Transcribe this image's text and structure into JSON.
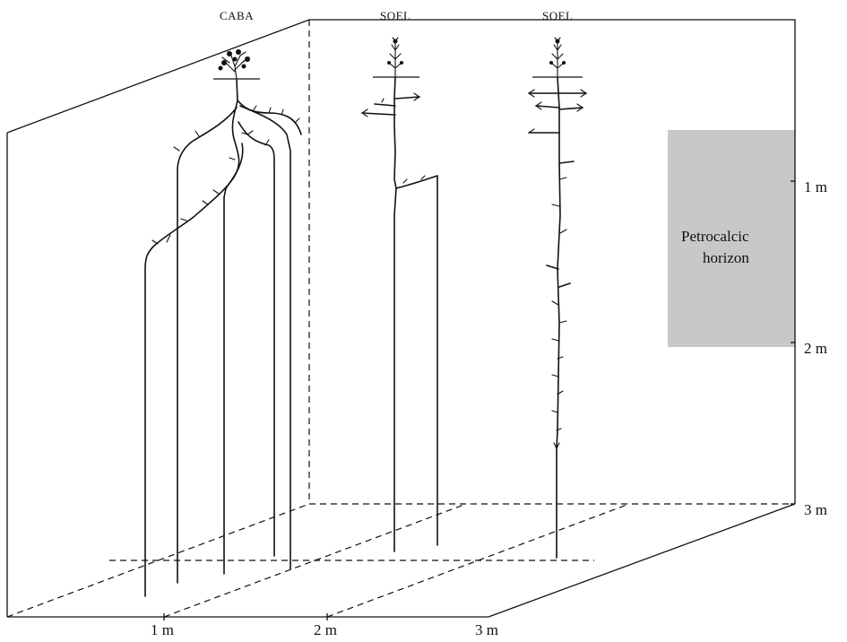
{
  "plants": [
    {
      "id": "caba",
      "label": "CABA"
    },
    {
      "id": "soel1",
      "label": "SOEL"
    },
    {
      "id": "soel2",
      "label": "SOEL"
    }
  ],
  "depth_axis": {
    "ticks": [
      "1 m",
      "2 m",
      "3 m"
    ]
  },
  "width_axis": {
    "ticks": [
      "1 m",
      "2 m",
      "3 m"
    ]
  },
  "horizon": {
    "label_line1": "Petrocalcic",
    "label_line2": "horizon",
    "fill": "#c8c8c8"
  }
}
